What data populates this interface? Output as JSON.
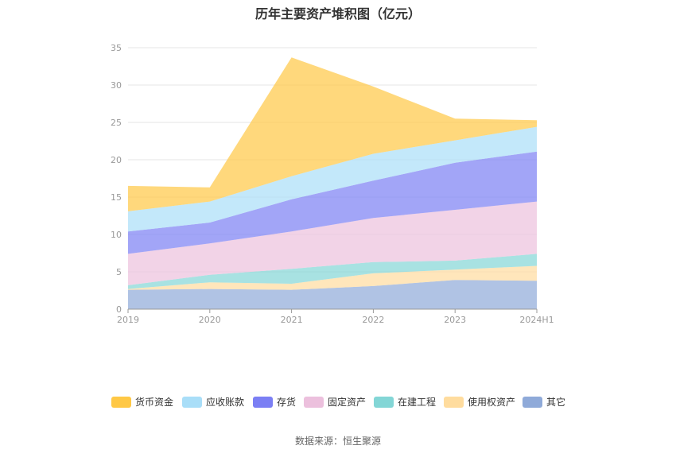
{
  "source_text": "数据来源：恒生聚源",
  "chart_data": {
    "type": "area",
    "stacked": true,
    "title": "历年主要资产堆积图（亿元）",
    "categories": [
      "2019",
      "2020",
      "2021",
      "2022",
      "2023",
      "2024H1"
    ],
    "ylim": [
      0,
      35
    ],
    "yticks": [
      0,
      5,
      10,
      15,
      20,
      25,
      30,
      35
    ],
    "grid": true,
    "legend_position": "bottom",
    "series": [
      {
        "name": "其它",
        "color": "#8faad9",
        "values": [
          2.6,
          2.7,
          2.6,
          3.1,
          3.9,
          3.8
        ]
      },
      {
        "name": "使用权资产",
        "color": "#ffdc9e",
        "values": [
          0.1,
          0.9,
          0.8,
          1.7,
          1.4,
          2.0
        ]
      },
      {
        "name": "在建工程",
        "color": "#83d6d6",
        "values": [
          0.5,
          1.0,
          2.0,
          1.5,
          1.2,
          1.6
        ]
      },
      {
        "name": "固定资产",
        "color": "#ecc0dd",
        "values": [
          4.2,
          4.2,
          5.0,
          5.9,
          6.8,
          7.0
        ]
      },
      {
        "name": "存货",
        "color": "#7b7ff4",
        "values": [
          3.0,
          2.8,
          4.3,
          5.0,
          6.3,
          6.7
        ]
      },
      {
        "name": "应收账款",
        "color": "#a9def8",
        "values": [
          2.7,
          2.8,
          3.1,
          3.6,
          3.0,
          3.3
        ]
      },
      {
        "name": "货币资金",
        "color": "#ffc845",
        "values": [
          3.4,
          1.9,
          15.9,
          9.0,
          2.9,
          0.9
        ]
      }
    ],
    "legend_order": [
      "货币资金",
      "应收账款",
      "存货",
      "固定资产",
      "在建工程",
      "使用权资产",
      "其它"
    ]
  }
}
